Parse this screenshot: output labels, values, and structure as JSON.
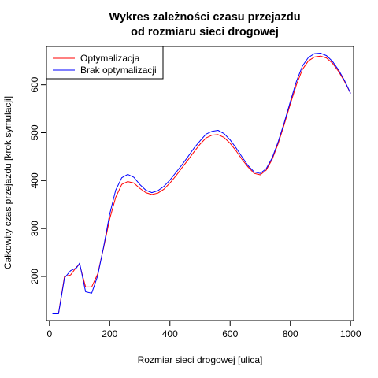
{
  "chart_data": {
    "type": "line",
    "title_lines": [
      "Wykres zależności czasu przejazdu",
      "od rozmiaru sieci drogowej"
    ],
    "xlabel": "Rozmiar sieci drogowej [ulica]",
    "ylabel": "Całkowity czas przejazdu [krok symulacji]",
    "xlim": [
      -10,
      1010
    ],
    "ylim": [
      108,
      680
    ],
    "x_ticks": [
      0,
      200,
      400,
      600,
      800,
      1000
    ],
    "y_ticks": [
      200,
      300,
      400,
      500,
      600
    ],
    "grid": false,
    "legend_position": "top-left",
    "x": [
      10,
      30,
      50,
      70,
      90,
      100,
      120,
      140,
      160,
      180,
      200,
      220,
      240,
      260,
      280,
      300,
      320,
      340,
      360,
      380,
      400,
      420,
      440,
      460,
      480,
      500,
      520,
      540,
      560,
      580,
      600,
      620,
      640,
      660,
      680,
      700,
      720,
      740,
      760,
      780,
      800,
      820,
      840,
      860,
      880,
      900,
      920,
      940,
      960,
      980,
      1000
    ],
    "series": [
      {
        "name": "Optymalizacja",
        "color": "#ff0000",
        "values": [
          123,
          123,
          200,
          203,
          220,
          225,
          178,
          178,
          205,
          260,
          320,
          365,
          392,
          398,
          395,
          384,
          375,
          371,
          374,
          382,
          395,
          410,
          427,
          443,
          460,
          476,
          489,
          495,
          496,
          490,
          478,
          462,
          444,
          428,
          415,
          412,
          422,
          445,
          478,
          518,
          560,
          600,
          632,
          650,
          658,
          660,
          656,
          645,
          628,
          607,
          582
        ]
      },
      {
        "name": "Brak optymalizacji",
        "color": "#0000ff",
        "values": [
          122,
          122,
          197,
          212,
          218,
          228,
          168,
          165,
          201,
          262,
          330,
          380,
          406,
          413,
          407,
          392,
          380,
          375,
          379,
          388,
          401,
          417,
          433,
          450,
          468,
          483,
          497,
          503,
          505,
          498,
          485,
          468,
          449,
          431,
          418,
          415,
          425,
          448,
          482,
          522,
          565,
          607,
          639,
          657,
          665,
          666,
          661,
          649,
          631,
          609,
          582
        ]
      }
    ]
  }
}
